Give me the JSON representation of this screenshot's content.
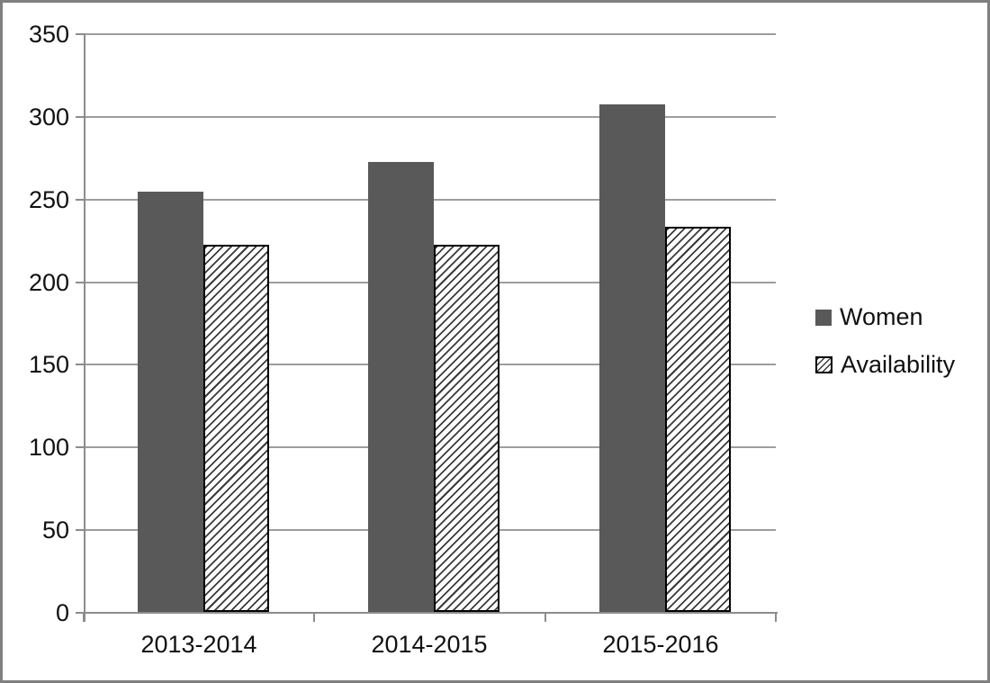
{
  "chart_data": {
    "type": "bar",
    "categories": [
      "2013-2014",
      "2014-2015",
      "2015-2016"
    ],
    "series": [
      {
        "name": "Women",
        "pattern": "solid",
        "values": [
          254,
          272,
          307
        ]
      },
      {
        "name": "Availability",
        "pattern": "diagonal-hatch",
        "values": [
          222,
          222,
          233
        ]
      }
    ],
    "title": "",
    "xlabel": "",
    "ylabel": "",
    "ylim": [
      0,
      350
    ],
    "yticks": [
      0,
      50,
      100,
      150,
      200,
      250,
      300,
      350
    ],
    "grid": true,
    "legend_position": "right"
  },
  "colors": {
    "bar_fill": "#595959",
    "hatch_fill": "#ffffff",
    "hatch_line": "#3a3a3a",
    "hatch_border": "#000000",
    "gridline": "#9d9d9d",
    "axis": "#8c8c8c",
    "text": "#111111",
    "frame_border": "#7f7f7f",
    "background": "#ffffff"
  }
}
